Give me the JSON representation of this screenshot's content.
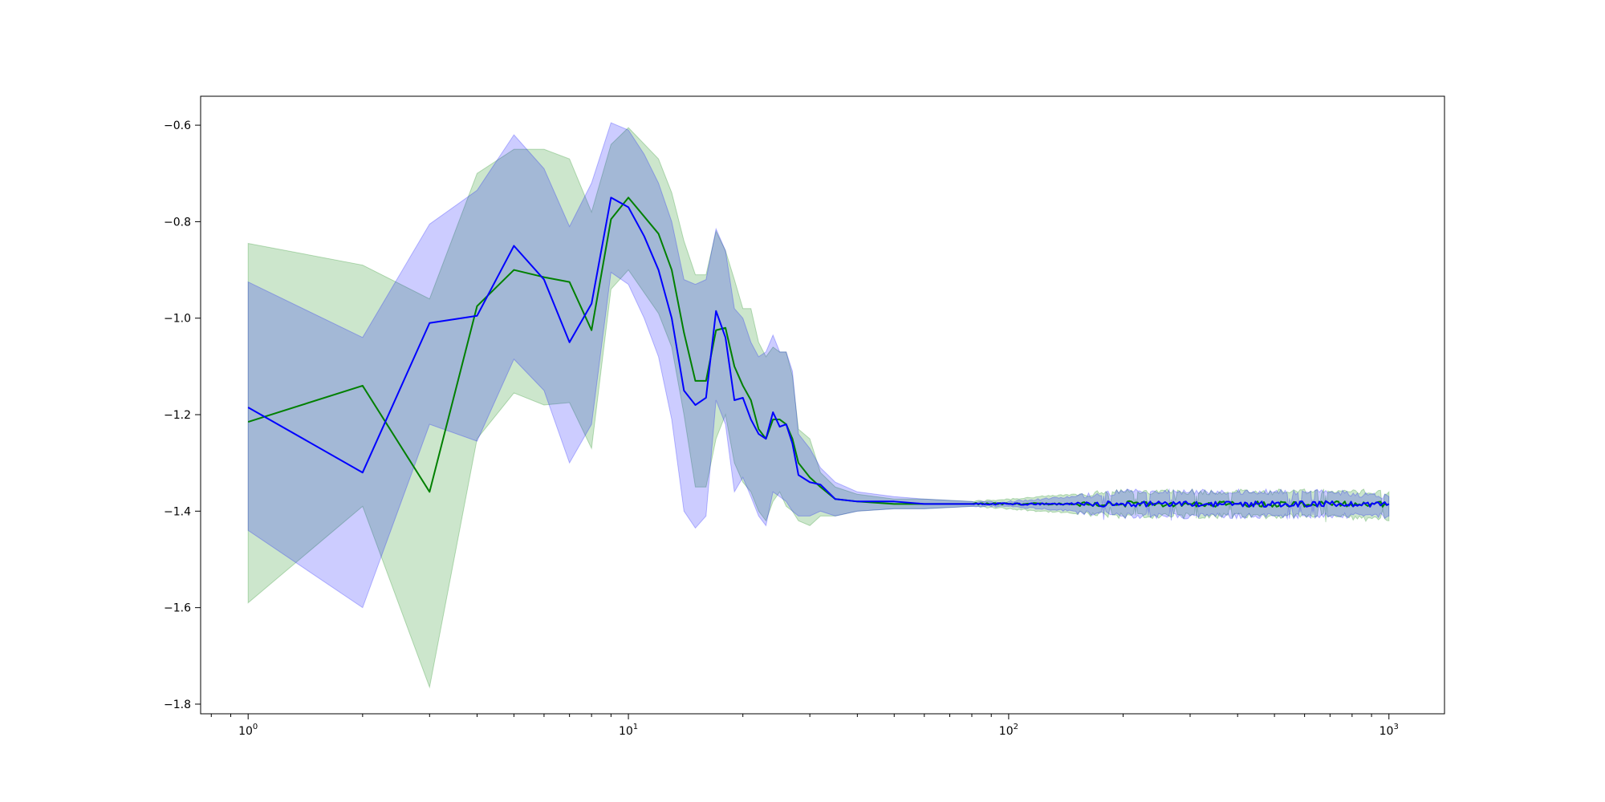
{
  "chart_data": {
    "type": "line",
    "title": "",
    "xlabel": "",
    "ylabel": "",
    "xscale": "log",
    "xlim": [
      0.75,
      1400
    ],
    "ylim": [
      -1.82,
      -0.54
    ],
    "grid": false,
    "legend": "none",
    "x_ticks": [
      {
        "base": "10",
        "exp": "0",
        "value": 1
      },
      {
        "base": "10",
        "exp": "1",
        "value": 10
      },
      {
        "base": "10",
        "exp": "2",
        "value": 100
      },
      {
        "base": "10",
        "exp": "3",
        "value": 1000
      }
    ],
    "y_ticks": [
      {
        "label": "−0.6",
        "value": -0.6
      },
      {
        "label": "−0.8",
        "value": -0.8
      },
      {
        "label": "−1.0",
        "value": -1.0
      },
      {
        "label": "−1.2",
        "value": -1.2
      },
      {
        "label": "−1.4",
        "value": -1.4
      },
      {
        "label": "−1.6",
        "value": -1.6
      },
      {
        "label": "−1.8",
        "value": -1.8
      }
    ],
    "series": [
      {
        "color": "#008000",
        "band_color": "#008000",
        "band_opacity": 0.2,
        "x": [
          1,
          2,
          3,
          4,
          5,
          6,
          7,
          8,
          9,
          10,
          12,
          13,
          14,
          15,
          16,
          17,
          18,
          19,
          20,
          21,
          22,
          23,
          24,
          25,
          26,
          27,
          28,
          30,
          32,
          35,
          40,
          50,
          60,
          80,
          100,
          150,
          200,
          300,
          500,
          700,
          1000
        ],
        "mean": [
          -1.215,
          -1.14,
          -1.36,
          -0.975,
          -0.9,
          -0.915,
          -0.925,
          -1.025,
          -0.795,
          -0.75,
          -0.825,
          -0.9,
          -1.03,
          -1.13,
          -1.13,
          -1.025,
          -1.02,
          -1.1,
          -1.14,
          -1.17,
          -1.23,
          -1.25,
          -1.21,
          -1.21,
          -1.22,
          -1.25,
          -1.3,
          -1.33,
          -1.35,
          -1.375,
          -1.38,
          -1.385,
          -1.385,
          -1.385,
          -1.385,
          -1.385,
          -1.385,
          -1.385,
          -1.385,
          -1.385,
          -1.385
        ],
        "upper": [
          -0.845,
          -0.89,
          -0.96,
          -0.7,
          -0.65,
          -0.65,
          -0.67,
          -0.78,
          -0.64,
          -0.605,
          -0.67,
          -0.74,
          -0.84,
          -0.91,
          -0.91,
          -0.82,
          -0.86,
          -0.92,
          -0.98,
          -0.98,
          -1.05,
          -1.08,
          -1.06,
          -1.07,
          -1.07,
          -1.12,
          -1.23,
          -1.25,
          -1.32,
          -1.35,
          -1.365,
          -1.375,
          -1.375,
          -1.38,
          -1.375,
          -1.365,
          -1.36,
          -1.36,
          -1.36,
          -1.36,
          -1.36
        ],
        "lower": [
          -1.59,
          -1.39,
          -1.765,
          -1.25,
          -1.155,
          -1.18,
          -1.175,
          -1.27,
          -0.94,
          -0.9,
          -0.99,
          -1.06,
          -1.2,
          -1.35,
          -1.35,
          -1.25,
          -1.2,
          -1.3,
          -1.34,
          -1.36,
          -1.4,
          -1.42,
          -1.38,
          -1.36,
          -1.39,
          -1.4,
          -1.42,
          -1.43,
          -1.41,
          -1.41,
          -1.4,
          -1.395,
          -1.395,
          -1.39,
          -1.395,
          -1.405,
          -1.41,
          -1.41,
          -1.41,
          -1.41,
          -1.42
        ]
      },
      {
        "color": "#0000ff",
        "band_color": "#0000ff",
        "band_opacity": 0.2,
        "x": [
          1,
          2,
          3,
          4,
          5,
          6,
          7,
          8,
          9,
          10,
          11,
          12,
          13,
          14,
          15,
          16,
          17,
          18,
          19,
          20,
          21,
          22,
          23,
          24,
          25,
          26,
          27,
          28,
          30,
          32,
          35,
          40,
          50,
          60,
          80,
          100,
          150,
          200,
          300,
          500,
          700,
          1000
        ],
        "mean": [
          -1.185,
          -1.32,
          -1.01,
          -0.995,
          -0.85,
          -0.92,
          -1.05,
          -0.97,
          -0.75,
          -0.77,
          -0.83,
          -0.9,
          -1.0,
          -1.15,
          -1.18,
          -1.165,
          -0.985,
          -1.04,
          -1.17,
          -1.165,
          -1.21,
          -1.24,
          -1.25,
          -1.195,
          -1.225,
          -1.22,
          -1.26,
          -1.325,
          -1.34,
          -1.345,
          -1.375,
          -1.38,
          -1.38,
          -1.385,
          -1.385,
          -1.385,
          -1.385,
          -1.385,
          -1.385,
          -1.385,
          -1.385,
          -1.385
        ],
        "upper": [
          -0.925,
          -1.04,
          -0.805,
          -0.735,
          -0.62,
          -0.69,
          -0.81,
          -0.72,
          -0.595,
          -0.61,
          -0.66,
          -0.72,
          -0.8,
          -0.92,
          -0.93,
          -0.92,
          -0.815,
          -0.86,
          -0.98,
          -1.0,
          -1.05,
          -1.08,
          -1.07,
          -1.035,
          -1.07,
          -1.07,
          -1.11,
          -1.24,
          -1.27,
          -1.31,
          -1.34,
          -1.36,
          -1.37,
          -1.375,
          -1.38,
          -1.38,
          -1.37,
          -1.36,
          -1.36,
          -1.36,
          -1.36,
          -1.37
        ],
        "lower": [
          -1.44,
          -1.6,
          -1.22,
          -1.255,
          -1.085,
          -1.15,
          -1.3,
          -1.22,
          -0.905,
          -0.93,
          -1.0,
          -1.08,
          -1.21,
          -1.4,
          -1.435,
          -1.41,
          -1.17,
          -1.22,
          -1.36,
          -1.33,
          -1.37,
          -1.41,
          -1.43,
          -1.36,
          -1.37,
          -1.38,
          -1.4,
          -1.41,
          -1.41,
          -1.4,
          -1.41,
          -1.4,
          -1.395,
          -1.395,
          -1.39,
          -1.39,
          -1.4,
          -1.41,
          -1.41,
          -1.41,
          -1.41,
          -1.41
        ]
      }
    ]
  }
}
